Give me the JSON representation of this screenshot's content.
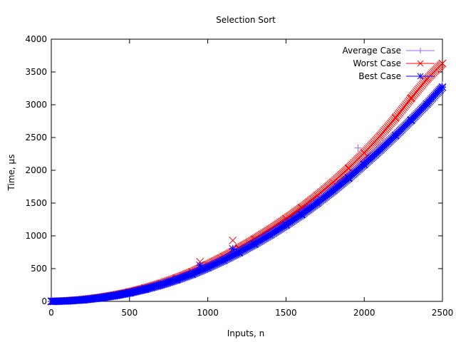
{
  "chart_data": {
    "type": "scatter",
    "title": "Selection Sort",
    "xlabel": "Inputs, n",
    "ylabel": "Time, µs",
    "xlim": [
      0,
      2500
    ],
    "ylim": [
      0,
      4000
    ],
    "xticks": [
      0,
      500,
      1000,
      1500,
      2000,
      2500
    ],
    "yticks": [
      0,
      500,
      1000,
      1500,
      2000,
      2500,
      3000,
      3500,
      4000
    ],
    "grid": false,
    "legend_position": "top-right",
    "series": [
      {
        "name": "Average Case",
        "color": "#a05cf0",
        "marker": "plus",
        "values": [
          [
            0,
            0
          ],
          [
            100,
            8
          ],
          [
            200,
            25
          ],
          [
            300,
            52
          ],
          [
            400,
            88
          ],
          [
            500,
            135
          ],
          [
            600,
            192
          ],
          [
            700,
            260
          ],
          [
            800,
            338
          ],
          [
            900,
            428
          ],
          [
            950,
            560
          ],
          [
            1000,
            530
          ],
          [
            1100,
            640
          ],
          [
            1160,
            810
          ],
          [
            1200,
            760
          ],
          [
            1300,
            890
          ],
          [
            1400,
            1030
          ],
          [
            1500,
            1180
          ],
          [
            1600,
            1345
          ],
          [
            1700,
            1520
          ],
          [
            1800,
            1705
          ],
          [
            1900,
            1900
          ],
          [
            1960,
            2340
          ],
          [
            2000,
            2105
          ],
          [
            2100,
            2320
          ],
          [
            2200,
            2545
          ],
          [
            2300,
            2780
          ],
          [
            2400,
            3030
          ],
          [
            2500,
            3300
          ]
        ]
      },
      {
        "name": "Worst Case",
        "color": "#ff0000",
        "marker": "cross",
        "values": [
          [
            0,
            0
          ],
          [
            100,
            9
          ],
          [
            200,
            27
          ],
          [
            300,
            56
          ],
          [
            400,
            94
          ],
          [
            500,
            142
          ],
          [
            600,
            202
          ],
          [
            700,
            273
          ],
          [
            800,
            355
          ],
          [
            900,
            450
          ],
          [
            950,
            605
          ],
          [
            1000,
            560
          ],
          [
            1100,
            680
          ],
          [
            1160,
            930
          ],
          [
            1200,
            810
          ],
          [
            1300,
            950
          ],
          [
            1400,
            1100
          ],
          [
            1500,
            1260
          ],
          [
            1600,
            1430
          ],
          [
            1700,
            1615
          ],
          [
            1800,
            1815
          ],
          [
            1900,
            2030
          ],
          [
            2000,
            2265
          ],
          [
            2100,
            2520
          ],
          [
            2200,
            2800
          ],
          [
            2300,
            3100
          ],
          [
            2400,
            3390
          ],
          [
            2500,
            3630
          ]
        ]
      },
      {
        "name": "Best Case",
        "color": "#0000ff",
        "marker": "star",
        "values": [
          [
            0,
            0
          ],
          [
            100,
            7
          ],
          [
            200,
            23
          ],
          [
            300,
            50
          ],
          [
            400,
            85
          ],
          [
            500,
            130
          ],
          [
            600,
            186
          ],
          [
            700,
            252
          ],
          [
            800,
            328
          ],
          [
            900,
            415
          ],
          [
            950,
            550
          ],
          [
            1000,
            515
          ],
          [
            1100,
            625
          ],
          [
            1160,
            800
          ],
          [
            1200,
            745
          ],
          [
            1300,
            875
          ],
          [
            1400,
            1015
          ],
          [
            1500,
            1165
          ],
          [
            1600,
            1325
          ],
          [
            1700,
            1500
          ],
          [
            1800,
            1685
          ],
          [
            1900,
            1880
          ],
          [
            2000,
            2090
          ],
          [
            2100,
            2305
          ],
          [
            2200,
            2530
          ],
          [
            2300,
            2765
          ],
          [
            2400,
            3010
          ],
          [
            2500,
            3270
          ]
        ]
      }
    ]
  }
}
